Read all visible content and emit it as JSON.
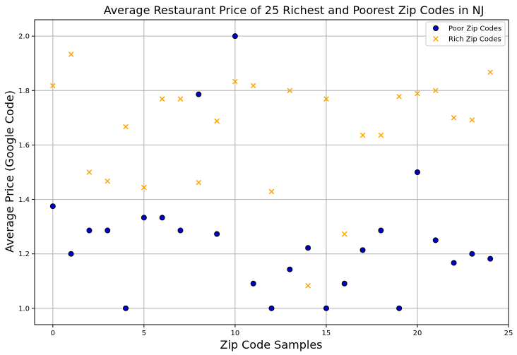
{
  "chart_data": {
    "type": "scatter",
    "title": "Average Restaurant Price of 25 Richest and Poorest Zip Codes in NJ",
    "xlabel": "Zip Code Samples",
    "ylabel": "Average Price (Google Code)",
    "xlim": [
      -1,
      25
    ],
    "ylim": [
      0.94,
      2.06
    ],
    "xticks": [
      0,
      5,
      10,
      15,
      20,
      25
    ],
    "yticks": [
      1.0,
      1.2,
      1.4,
      1.6,
      1.8,
      2.0
    ],
    "grid": true,
    "legend_position": "top-right",
    "series": [
      {
        "name": "Poor Zip Codes",
        "marker": "circle",
        "color": "#0000cc",
        "edge_color": "#000000",
        "x": [
          0,
          1,
          2,
          3,
          4,
          5,
          6,
          7,
          8,
          9,
          10,
          11,
          12,
          13,
          14,
          15,
          16,
          17,
          18,
          19,
          20,
          21,
          22,
          23,
          24
        ],
        "y": [
          1.375,
          1.2,
          1.286,
          1.286,
          1.0,
          1.333,
          1.333,
          1.286,
          1.786,
          1.273,
          2.0,
          1.091,
          1.0,
          1.143,
          1.222,
          1.0,
          1.091,
          1.214,
          1.286,
          1.0,
          1.5,
          1.25,
          1.167,
          1.2,
          1.182
        ]
      },
      {
        "name": "Rich Zip Codes",
        "marker": "x",
        "color": "#ffa500",
        "x": [
          0,
          1,
          2,
          3,
          4,
          5,
          6,
          7,
          8,
          9,
          10,
          11,
          12,
          13,
          14,
          15,
          16,
          17,
          18,
          19,
          20,
          21,
          22,
          23,
          24
        ],
        "y": [
          1.818,
          1.933,
          1.5,
          1.467,
          1.667,
          1.444,
          1.769,
          1.769,
          1.462,
          1.688,
          1.833,
          1.818,
          1.429,
          1.8,
          1.083,
          1.769,
          1.273,
          1.636,
          1.636,
          1.778,
          1.789,
          1.8,
          1.7,
          1.692,
          1.867
        ]
      }
    ]
  }
}
